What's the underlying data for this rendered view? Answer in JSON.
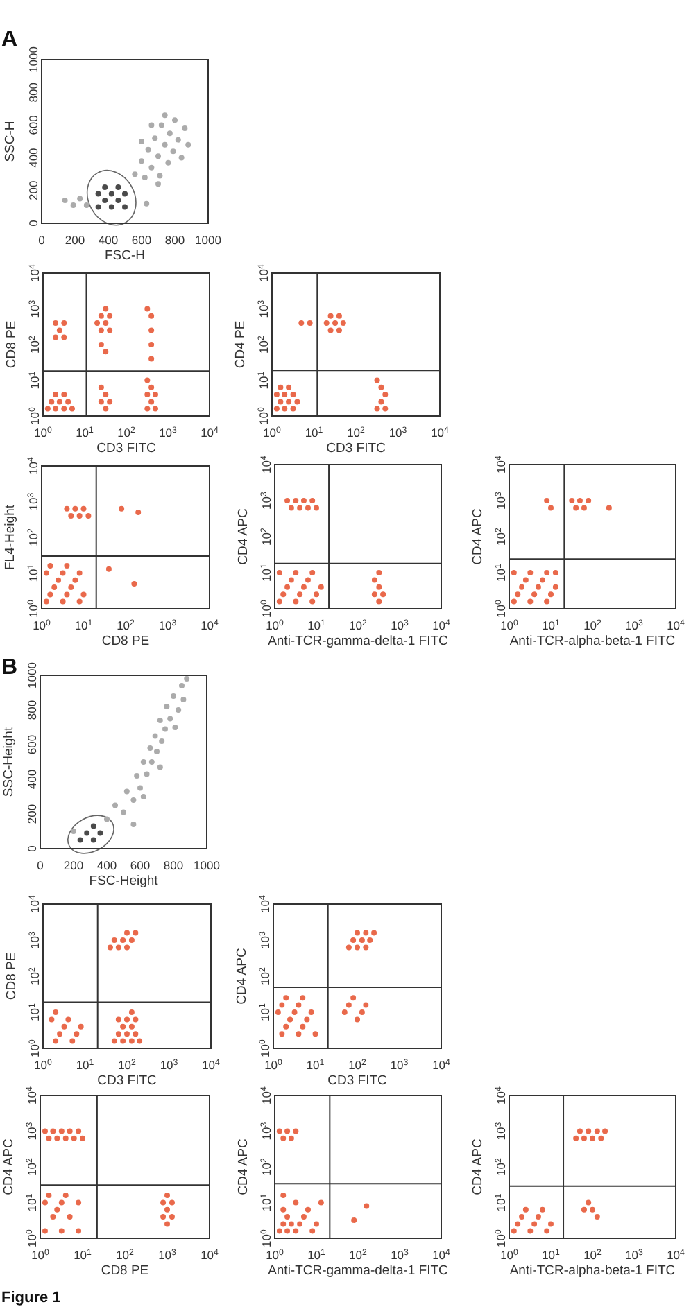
{
  "chart_data": [
    {
      "type": "scatter",
      "title": "A",
      "xlabel": "FSC-H",
      "ylabel": "SSC-H",
      "xlim": [
        0,
        1000
      ],
      "ylim": [
        0,
        1000
      ],
      "xticks": [
        0,
        200,
        400,
        600,
        800,
        1000
      ],
      "yticks": [
        0,
        200,
        400,
        600,
        800,
        1000
      ],
      "series": [
        {
          "color": "#4a4a4a",
          "x": [
            340,
            420,
            500,
            380,
            460,
            340,
            420,
            500,
            380,
            460
          ],
          "values": [
            100,
            100,
            100,
            140,
            140,
            180,
            180,
            180,
            220,
            220
          ]
        },
        {
          "color": "#ababab",
          "x": [
            140,
            190,
            230,
            270,
            630,
            560,
            600,
            620,
            640,
            660,
            680,
            700,
            710,
            720,
            740,
            760,
            770,
            790,
            800,
            820,
            840,
            860,
            880,
            660,
            600,
            740,
            700
          ],
          "values": [
            140,
            110,
            150,
            110,
            120,
            300,
            380,
            280,
            450,
            340,
            520,
            410,
            290,
            600,
            480,
            370,
            550,
            440,
            630,
            510,
            400,
            580,
            480,
            600,
            500,
            660,
            240
          ]
        }
      ]
    },
    {
      "type": "scatter",
      "xlabel": "CD3 FITC",
      "ylabel": "CD8 PE",
      "log": "xy",
      "xlim": [
        1,
        10000
      ],
      "ylim": [
        1,
        10000
      ],
      "xticks": [
        {
          "value": 1,
          "label": "10$^{0}$"
        },
        {
          "value": 10,
          "label": "10$^{1}$"
        },
        {
          "value": 100,
          "label": "10$^{2}$"
        },
        {
          "value": 1000,
          "label": "10$^{3}$"
        },
        {
          "value": 10000,
          "label": "10$^{4}$"
        }
      ],
      "yticks": [
        {
          "value": 1,
          "label": "10$^{0}$"
        },
        {
          "value": 10,
          "label": "10$^{1}$"
        },
        {
          "value": 100,
          "label": "10$^{2}$"
        },
        {
          "value": 1000,
          "label": "10$^{3}$"
        },
        {
          "value": 10000,
          "label": "10$^{4}$"
        }
      ],
      "series": [
        {
          "color": "#e9694b",
          "x": [
            1.3,
            2,
            3.2,
            5,
            1.6,
            2.5,
            4,
            2,
            3.2,
            32,
            25,
            40,
            32,
            25,
            320,
            500,
            400,
            320,
            500,
            400,
            320,
            400,
            400,
            400,
            400,
            320,
            2,
            3.2,
            2.5,
            2,
            3.2,
            25,
            40,
            20,
            32,
            25,
            40,
            32,
            32,
            25
          ],
          "values": [
            1.6,
            1.6,
            1.6,
            1.6,
            2.5,
            2.5,
            2.5,
            4,
            4,
            1.6,
            2.5,
            2.5,
            4,
            6.3,
            1.6,
            1.6,
            2.5,
            4,
            4,
            6.3,
            10,
            40,
            100,
            250,
            630,
            1000,
            160,
            160,
            250,
            400,
            400,
            250,
            250,
            400,
            400,
            630,
            630,
            1000,
            63,
            100
          ]
        }
      ],
      "ref_lines": [
        {
          "axis": "x",
          "value": 11,
          "color": "#333333"
        },
        {
          "axis": "y",
          "value": 18,
          "color": "#333333"
        }
      ]
    },
    {
      "type": "scatter",
      "xlabel": "CD3 FITC",
      "ylabel": "CD4 PE",
      "log": "xy",
      "xlim": [
        1,
        10000
      ],
      "ylim": [
        1,
        10000
      ],
      "xticks": [
        {
          "value": 1,
          "label": "10$^{0}$"
        },
        {
          "value": 10,
          "label": "10$^{1}$"
        },
        {
          "value": 100,
          "label": "10$^{2}$"
        },
        {
          "value": 1000,
          "label": "10$^{3}$"
        },
        {
          "value": 10000,
          "label": "10$^{4}$"
        }
      ],
      "yticks": [
        {
          "value": 1,
          "label": "10$^{0}$"
        },
        {
          "value": 10,
          "label": "10$^{1}$"
        },
        {
          "value": 100,
          "label": "10$^{2}$"
        },
        {
          "value": 1000,
          "label": "10$^{3}$"
        },
        {
          "value": 10000,
          "label": "10$^{4}$"
        }
      ],
      "series": [
        {
          "color": "#e9694b",
          "x": [
            20,
            32,
            50,
            25,
            40,
            25,
            40,
            8,
            5,
            1.3,
            2,
            3.2,
            1.6,
            2.5,
            4,
            1.3,
            2,
            3.2,
            1.6,
            2.5,
            320,
            500,
            400,
            500,
            400,
            320
          ],
          "values": [
            400,
            400,
            400,
            630,
            630,
            250,
            250,
            400,
            400,
            1.6,
            1.6,
            1.6,
            2.5,
            2.5,
            2.5,
            4,
            4,
            4,
            6.3,
            6.3,
            1.6,
            1.6,
            2.5,
            4,
            6.3,
            10
          ]
        }
      ],
      "ref_lines": [
        {
          "axis": "x",
          "value": 12,
          "color": "#333333"
        },
        {
          "axis": "y",
          "value": 19,
          "color": "#333333"
        }
      ]
    },
    {
      "type": "scatter",
      "xlabel": "CD8 PE",
      "ylabel": "FL4-Height",
      "log": "xy",
      "xlim": [
        1,
        10000
      ],
      "ylim": [
        1,
        10000
      ],
      "xticks": [
        {
          "value": 1,
          "label": "10$^{0}$"
        },
        {
          "value": 10,
          "label": "10$^{1}$"
        },
        {
          "value": 100,
          "label": "10$^{2}$"
        },
        {
          "value": 1000,
          "label": "10$^{3}$"
        },
        {
          "value": 10000,
          "label": "10$^{4}$"
        }
      ],
      "yticks": [
        {
          "value": 1,
          "label": "10$^{0}$"
        },
        {
          "value": 10,
          "label": "10$^{1}$"
        },
        {
          "value": 100,
          "label": "10$^{2}$"
        },
        {
          "value": 1000,
          "label": "10$^{3}$"
        },
        {
          "value": 10000,
          "label": "10$^{4}$"
        }
      ],
      "series": [
        {
          "color": "#e9694b",
          "x": [
            5,
            8,
            13,
            4,
            6.3,
            10,
            1.3,
            3.2,
            8,
            1.6,
            4,
            10,
            2,
            5,
            2.5,
            6.3,
            1.3,
            3.2,
            8,
            1.6,
            4,
            40,
            160,
            80,
            200
          ],
          "values": [
            400,
            400,
            400,
            630,
            630,
            630,
            1.6,
            1.6,
            1.6,
            2.5,
            2.5,
            2.5,
            4,
            4,
            6.3,
            6.3,
            10,
            10,
            10,
            16,
            16,
            13,
            5,
            630,
            500
          ]
        }
      ],
      "ref_lines": [
        {
          "axis": "x",
          "value": 20,
          "color": "#333333"
        },
        {
          "axis": "y",
          "value": 30,
          "color": "#333333"
        }
      ]
    },
    {
      "type": "scatter",
      "xlabel": "Anti-TCR-gamma-delta-1 FITC",
      "ylabel": "CD4 APC",
      "log": "xy",
      "xlim": [
        1,
        10000
      ],
      "ylim": [
        1,
        10000
      ],
      "xticks": [
        {
          "value": 1,
          "label": "10$^{0}$"
        },
        {
          "value": 10,
          "label": "10$^{1}$"
        },
        {
          "value": 100,
          "label": "10$^{2}$"
        },
        {
          "value": 1000,
          "label": "10$^{3}$"
        },
        {
          "value": 10000,
          "label": "10$^{4}$"
        }
      ],
      "yticks": [
        {
          "value": 1,
          "label": "10$^{0}$"
        },
        {
          "value": 10,
          "label": "10$^{1}$"
        },
        {
          "value": 100,
          "label": "10$^{2}$"
        },
        {
          "value": 1000,
          "label": "10$^{3}$"
        },
        {
          "value": 10000,
          "label": "10$^{4}$"
        }
      ],
      "series": [
        {
          "color": "#e9694b",
          "x": [
            2.5,
            4,
            6.3,
            10,
            2,
            3.2,
            5,
            8,
            1.3,
            3.2,
            8,
            1.6,
            4,
            10,
            2,
            5,
            13,
            2.5,
            6.3,
            1.3,
            3.2,
            8,
            320,
            250,
            400,
            320,
            250,
            320
          ],
          "values": [
            630,
            630,
            630,
            630,
            1000,
            1000,
            1000,
            1000,
            1.6,
            1.6,
            1.6,
            2.5,
            2.5,
            2.5,
            4,
            4,
            4,
            6.3,
            6.3,
            10,
            10,
            10,
            1.6,
            2.5,
            2.5,
            4,
            6.3,
            10
          ]
        }
      ],
      "ref_lines": [
        {
          "axis": "x",
          "value": 20,
          "color": "#333333"
        },
        {
          "axis": "y",
          "value": 18,
          "color": "#333333"
        }
      ]
    },
    {
      "type": "scatter",
      "xlabel": "Anti-TCR-alpha-beta-1 FITC",
      "ylabel": "CD4 APC",
      "log": "xy",
      "xlim": [
        1,
        10000
      ],
      "ylim": [
        1,
        10000
      ],
      "xticks": [
        {
          "value": 1,
          "label": "10$^{0}$"
        },
        {
          "value": 10,
          "label": "10$^{1}$"
        },
        {
          "value": 100,
          "label": "10$^{2}$"
        },
        {
          "value": 1000,
          "label": "10$^{3}$"
        },
        {
          "value": 10000,
          "label": "10$^{4}$"
        }
      ],
      "yticks": [
        {
          "value": 1,
          "label": "10$^{0}$"
        },
        {
          "value": 10,
          "label": "10$^{1}$"
        },
        {
          "value": 100,
          "label": "10$^{2}$"
        },
        {
          "value": 1000,
          "label": "10$^{3}$"
        },
        {
          "value": 10000,
          "label": "10$^{4}$"
        }
      ],
      "series": [
        {
          "color": "#e9694b",
          "x": [
            10,
            40,
            63,
            250,
            8,
            32,
            50,
            80,
            1.3,
            3.2,
            8,
            1.6,
            4,
            10,
            2,
            5,
            13,
            2.5,
            6.3,
            1.3,
            3.2,
            8,
            13
          ],
          "values": [
            630,
            630,
            630,
            630,
            1000,
            1000,
            1000,
            1000,
            1.6,
            1.6,
            1.6,
            2.5,
            2.5,
            2.5,
            4,
            4,
            4,
            6.3,
            6.3,
            10,
            10,
            10,
            10
          ]
        }
      ],
      "ref_lines": [
        {
          "axis": "x",
          "value": 21,
          "color": "#333333"
        },
        {
          "axis": "y",
          "value": 24,
          "color": "#333333"
        }
      ]
    },
    {
      "type": "scatter",
      "title": "B",
      "xlabel": "FSC-Height",
      "ylabel": "SSC-Height",
      "xlim": [
        0,
        1000
      ],
      "ylim": [
        0,
        1000
      ],
      "xticks": [
        0,
        200,
        400,
        600,
        800,
        1000
      ],
      "yticks": [
        0,
        200,
        400,
        600,
        800,
        1000
      ],
      "series": [
        {
          "color": "#4a4a4a",
          "x": [
            240,
            320,
            280,
            360,
            320
          ],
          "values": [
            50,
            50,
            90,
            90,
            130
          ]
        },
        {
          "color": "#ababab",
          "x": [
            400,
            450,
            500,
            520,
            560,
            580,
            600,
            620,
            640,
            660,
            670,
            690,
            700,
            720,
            730,
            750,
            760,
            780,
            800,
            810,
            830,
            850,
            860,
            880,
            620,
            720,
            560,
            200
          ],
          "values": [
            170,
            250,
            210,
            330,
            280,
            420,
            350,
            500,
            430,
            580,
            500,
            650,
            560,
            740,
            620,
            690,
            820,
            750,
            880,
            700,
            800,
            940,
            860,
            980,
            300,
            470,
            140,
            100
          ]
        }
      ]
    },
    {
      "type": "scatter",
      "xlabel": "CD3 FITC",
      "ylabel": "CD8 PE",
      "log": "xy",
      "xlim": [
        1,
        10000
      ],
      "ylim": [
        1,
        10000
      ],
      "xticks": [
        {
          "value": 1,
          "label": "10$^{0}$"
        },
        {
          "value": 10,
          "label": "10$^{1}$"
        },
        {
          "value": 100,
          "label": "10$^{2}$"
        },
        {
          "value": 1000,
          "label": "10$^{3}$"
        },
        {
          "value": 10000,
          "label": "10$^{4}$"
        }
      ],
      "yticks": [
        {
          "value": 1,
          "label": "10$^{0}$"
        },
        {
          "value": 10,
          "label": "10$^{1}$"
        },
        {
          "value": 100,
          "label": "10$^{2}$"
        },
        {
          "value": 1000,
          "label": "10$^{3}$"
        },
        {
          "value": 10000,
          "label": "10$^{4}$"
        }
      ],
      "series": [
        {
          "color": "#e9694b",
          "x": [
            40,
            63,
            100,
            50,
            80,
            130,
            100,
            160,
            2,
            5,
            2.5,
            6.3,
            3.2,
            8,
            1.6,
            4,
            2,
            50,
            80,
            130,
            200,
            63,
            100,
            160,
            80,
            130,
            63,
            100,
            160,
            130
          ],
          "values": [
            630,
            630,
            630,
            1000,
            1000,
            1000,
            1600,
            1600,
            1.6,
            1.6,
            2.5,
            2.5,
            4,
            4,
            6.3,
            6.3,
            10,
            1.6,
            1.6,
            1.6,
            1.6,
            2.5,
            2.5,
            2.5,
            4,
            4,
            6.3,
            6.3,
            6.3,
            10
          ]
        }
      ],
      "ref_lines": [
        {
          "axis": "x",
          "value": 20,
          "color": "#333333"
        },
        {
          "axis": "y",
          "value": 19,
          "color": "#333333"
        }
      ]
    },
    {
      "type": "scatter",
      "xlabel": "CD3 FITC",
      "ylabel": "CD4 APC",
      "log": "xy",
      "xlim": [
        1,
        10000
      ],
      "ylim": [
        1,
        10000
      ],
      "xticks": [
        {
          "value": 1,
          "label": "10$^{0}$"
        },
        {
          "value": 10,
          "label": "10$^{1}$"
        },
        {
          "value": 100,
          "label": "10$^{2}$"
        },
        {
          "value": 1000,
          "label": "10$^{3}$"
        },
        {
          "value": 10000,
          "label": "10$^{4}$"
        }
      ],
      "yticks": [
        {
          "value": 1,
          "label": "10$^{0}$"
        },
        {
          "value": 10,
          "label": "10$^{1}$"
        },
        {
          "value": 100,
          "label": "10$^{2}$"
        },
        {
          "value": 1000,
          "label": "10$^{3}$"
        },
        {
          "value": 10000,
          "label": "10$^{4}$"
        }
      ],
      "series": [
        {
          "color": "#e9694b",
          "x": [
            63,
            100,
            160,
            80,
            130,
            200,
            100,
            160,
            250,
            1.6,
            4,
            10,
            2,
            5,
            2.5,
            6.3,
            1.3,
            3.2,
            8,
            1.6,
            4,
            2,
            5,
            100,
            50,
            130,
            63,
            160,
            80
          ],
          "values": [
            630,
            630,
            630,
            1000,
            1000,
            1000,
            1600,
            1600,
            1600,
            2.5,
            2.5,
            2.5,
            4,
            4,
            6.3,
            6.3,
            10,
            10,
            10,
            16,
            16,
            25,
            25,
            6.3,
            10,
            10,
            16,
            16,
            25
          ]
        }
      ],
      "ref_lines": [
        {
          "axis": "x",
          "value": 20,
          "color": "#333333"
        },
        {
          "axis": "y",
          "value": 49,
          "color": "#333333"
        }
      ]
    },
    {
      "type": "scatter",
      "xlabel": "CD8 PE",
      "ylabel": "CD4 APC",
      "log": "xy",
      "xlim": [
        1,
        10000
      ],
      "ylim": [
        1,
        10000
      ],
      "xticks": [
        {
          "value": 1,
          "label": "10$^{0}$"
        },
        {
          "value": 10,
          "label": "10$^{1}$"
        },
        {
          "value": 100,
          "label": "10$^{2}$"
        },
        {
          "value": 1000,
          "label": "10$^{3}$"
        },
        {
          "value": 10000,
          "label": "10$^{4}$"
        }
      ],
      "yticks": [
        {
          "value": 1,
          "label": "10$^{0}$"
        },
        {
          "value": 10,
          "label": "10$^{1}$"
        },
        {
          "value": 100,
          "label": "10$^{2}$"
        },
        {
          "value": 1000,
          "label": "10$^{3}$"
        },
        {
          "value": 10000,
          "label": "10$^{4}$"
        }
      ],
      "series": [
        {
          "color": "#e9694b",
          "x": [
            1.6,
            2.5,
            4,
            6.3,
            10,
            1.3,
            2,
            3.2,
            5,
            8,
            1.3,
            3.2,
            8,
            2,
            5,
            2.5,
            1.3,
            3.2,
            8,
            1.6,
            4,
            1000,
            800,
            1300,
            1000,
            800,
            1300,
            1000
          ],
          "values": [
            630,
            630,
            630,
            630,
            630,
            1000,
            1000,
            1000,
            1000,
            1000,
            1.6,
            1.6,
            1.6,
            4,
            4,
            6.3,
            10,
            10,
            10,
            16,
            16,
            2.5,
            4,
            4,
            6.3,
            10,
            10,
            16
          ]
        }
      ],
      "ref_lines": [
        {
          "axis": "x",
          "value": 22,
          "color": "#333333"
        },
        {
          "axis": "y",
          "value": 31,
          "color": "#333333"
        }
      ],
      "annotations": [
        "Figure 1"
      ]
    },
    {
      "type": "scatter",
      "xlabel": "Anti-TCR-gamma-delta-1 FITC",
      "ylabel": "CD4 APC",
      "log": "xy",
      "xlim": [
        1,
        10000
      ],
      "ylim": [
        1,
        10000
      ],
      "xticks": [
        {
          "value": 1,
          "label": "10$^{0}$"
        },
        {
          "value": 10,
          "label": "10$^{1}$"
        },
        {
          "value": 100,
          "label": "10$^{2}$"
        },
        {
          "value": 1000,
          "label": "10$^{3}$"
        },
        {
          "value": 10000,
          "label": "10$^{4}$"
        }
      ],
      "yticks": [
        {
          "value": 1,
          "label": "10$^{0}$"
        },
        {
          "value": 10,
          "label": "10$^{1}$"
        },
        {
          "value": 100,
          "label": "10$^{2}$"
        },
        {
          "value": 1000,
          "label": "10$^{3}$"
        },
        {
          "value": 10000,
          "label": "10$^{4}$"
        }
      ],
      "series": [
        {
          "color": "#e9694b",
          "x": [
            1.6,
            2.5,
            1.3,
            2,
            3.2,
            1.3,
            2,
            3.2,
            8,
            1.6,
            2.5,
            4,
            10,
            2,
            5,
            1.6,
            6.3,
            3.2,
            13,
            1.6,
            80,
            160
          ],
          "values": [
            630,
            630,
            1000,
            1000,
            1000,
            1.6,
            1.6,
            1.6,
            1.6,
            2.5,
            2.5,
            2.5,
            2.5,
            4,
            4,
            6.3,
            6.3,
            10,
            10,
            16,
            3.2,
            8
          ]
        }
      ],
      "ref_lines": [
        {
          "axis": "x",
          "value": 21,
          "color": "#333333"
        },
        {
          "axis": "y",
          "value": 34,
          "color": "#333333"
        }
      ]
    },
    {
      "type": "scatter",
      "xlabel": "Anti-TCR-alpha-beta-1 FITC",
      "ylabel": "CD4 APC",
      "log": "xy",
      "xlim": [
        1,
        10000
      ],
      "ylim": [
        1,
        10000
      ],
      "xticks": [
        {
          "value": 1,
          "label": "10$^{0}$"
        },
        {
          "value": 10,
          "label": "10$^{1}$"
        },
        {
          "value": 100,
          "label": "10$^{2}$"
        },
        {
          "value": 1000,
          "label": "10$^{3}$"
        },
        {
          "value": 10000,
          "label": "10$^{4}$"
        }
      ],
      "yticks": [
        {
          "value": 1,
          "label": "10$^{0}$"
        },
        {
          "value": 10,
          "label": "10$^{1}$"
        },
        {
          "value": 100,
          "label": "10$^{2}$"
        },
        {
          "value": 1000,
          "label": "10$^{3}$"
        },
        {
          "value": 10000,
          "label": "10$^{4}$"
        }
      ],
      "series": [
        {
          "color": "#e9694b",
          "x": [
            40,
            63,
            100,
            160,
            50,
            80,
            130,
            200,
            1.3,
            3.2,
            8,
            1.6,
            4,
            10,
            2,
            5,
            2.5,
            6.3,
            63,
            100,
            80,
            130
          ],
          "values": [
            630,
            630,
            630,
            630,
            1000,
            1000,
            1000,
            1000,
            1.6,
            1.6,
            1.6,
            2.5,
            2.5,
            2.5,
            4,
            4,
            6.3,
            6.3,
            6.3,
            6.3,
            10,
            4
          ]
        }
      ],
      "ref_lines": [
        {
          "axis": "x",
          "value": 20,
          "color": "#333333"
        },
        {
          "axis": "y",
          "value": 29,
          "color": "#333333"
        }
      ]
    }
  ]
}
